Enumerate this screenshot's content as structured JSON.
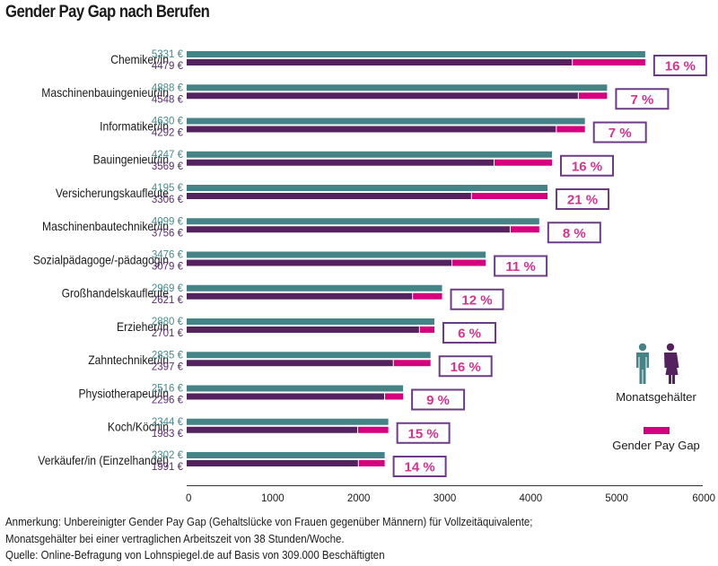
{
  "title": "Gender Pay Gap nach Berufen",
  "chart_data": {
    "type": "bar",
    "orientation": "horizontal",
    "title": "Gender Pay Gap nach Berufen",
    "xlabel": "",
    "ylabel": "",
    "xlim": [
      0,
      6000
    ],
    "xticks": [
      0,
      1000,
      2000,
      3000,
      4000,
      5000,
      6000
    ],
    "currency_suffix": " €",
    "categories": [
      "Chemiker/in",
      "Maschinenbauingenieur/in",
      "Informatiker/in",
      "Bauingenieur/in",
      "Versicherungskaufleute",
      "Maschinenbautechniker/in",
      "Sozialpädagoge/-pädagogin",
      "Großhandelskaufleute",
      "Erzieher/in",
      "Zahntechniker/in",
      "Physiotherapeut/in",
      "Koch/Köchin",
      "Verkäufer/in (Einzelhandel)"
    ],
    "series": [
      {
        "name": "Monatsgehälter Männer",
        "color": "#458386",
        "values": [
          5331,
          4888,
          4630,
          4247,
          4195,
          4099,
          3476,
          2969,
          2880,
          2835,
          2516,
          2344,
          2302
        ]
      },
      {
        "name": "Monatsgehälter Frauen",
        "color": "#54235f",
        "values": [
          4479,
          4548,
          4292,
          3569,
          3306,
          3756,
          3079,
          2621,
          2701,
          2397,
          2296,
          1983,
          1991
        ]
      }
    ],
    "gap_color": "#d6007e",
    "gap_percent_labels": [
      "16 %",
      "7 %",
      "7 %",
      "16 %",
      "21 %",
      "8 %",
      "11 %",
      "12 %",
      "6 %",
      "16 %",
      "9 %",
      "15 %",
      "14 %"
    ],
    "legend": {
      "position": "right",
      "salary_label": "Monatsgehälter",
      "gap_label": "Gender Pay Gap"
    }
  },
  "notes": {
    "line1": "Anmerkung: Unbereinigter Gender Pay Gap (Gehaltslücke von Frauen gegenüber Männern) für Vollzeitäquivalente;",
    "line2": "Monatsgehälter bei einer vertraglichen Arbeitszeit von 38 Stunden/Woche.",
    "line3": "Quelle: Online-Befragung von Lohnspiegel.de auf Basis von 309.000 Beschäftigten"
  },
  "colors": {
    "male": "#458386",
    "female": "#54235f",
    "gap": "#d6007e",
    "box_border": "#6b3b86",
    "pct_text": "#d6338f"
  }
}
